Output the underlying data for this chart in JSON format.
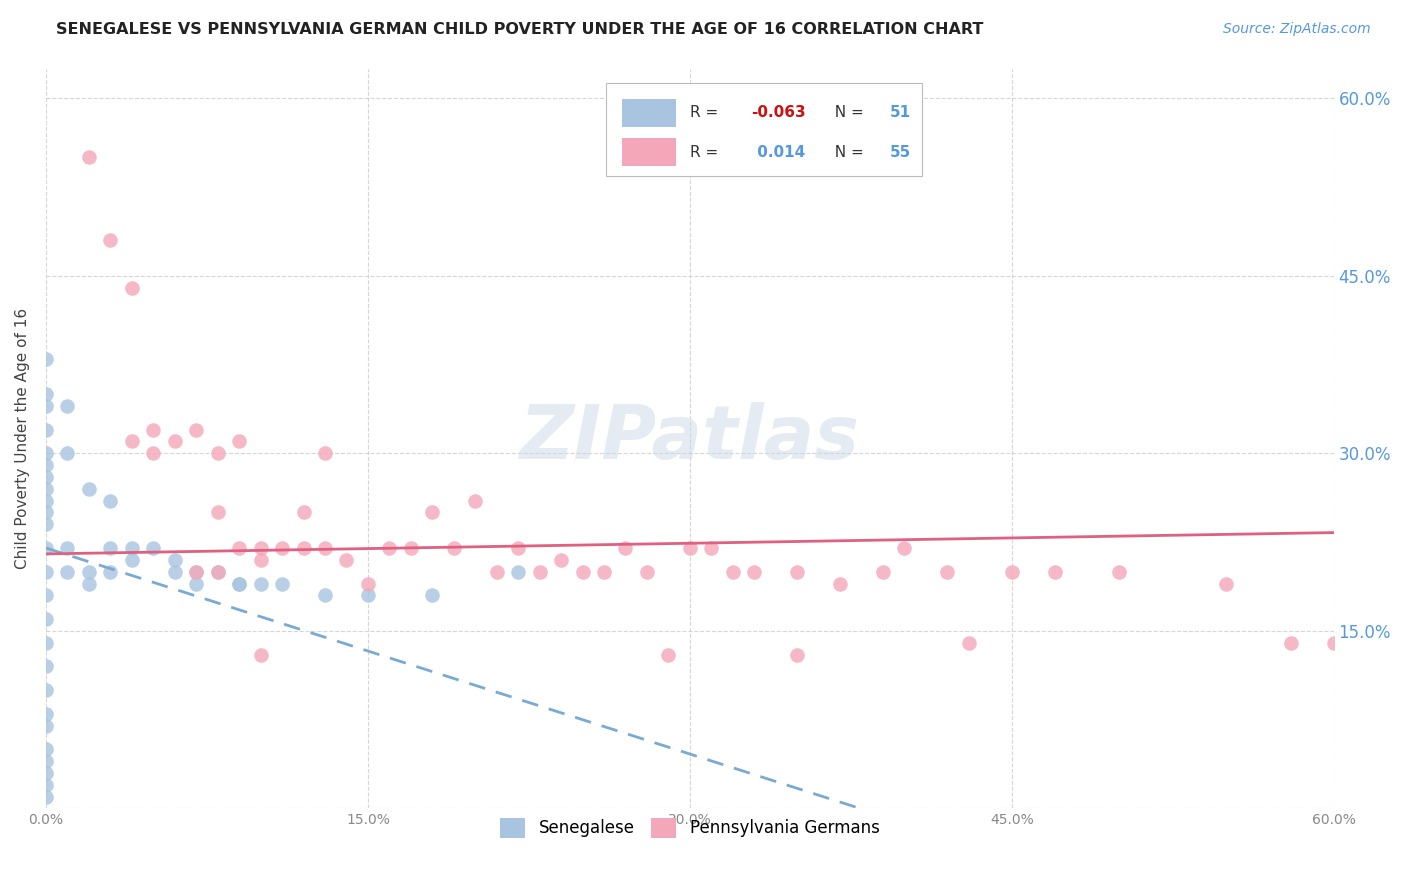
{
  "title": "SENEGALESE VS PENNSYLVANIA GERMAN CHILD POVERTY UNDER THE AGE OF 16 CORRELATION CHART",
  "source_text": "Source: ZipAtlas.com",
  "ylabel": "Child Poverty Under the Age of 16",
  "right_yticks": [
    "60.0%",
    "45.0%",
    "30.0%",
    "15.0%"
  ],
  "right_ytick_vals": [
    0.6,
    0.45,
    0.3,
    0.15
  ],
  "legend_label1": "Senegalese",
  "legend_label2": "Pennsylvania Germans",
  "r1": -0.063,
  "n1": 51,
  "r2": 0.014,
  "n2": 55,
  "color1": "#a8c4e0",
  "color2": "#f4a7b9",
  "trendline1_color": "#7aaad0",
  "trendline2_color": "#e06080",
  "watermark": "ZIPatlas",
  "xlim": [
    0.0,
    0.6
  ],
  "ylim": [
    0.0,
    0.625
  ],
  "senegalese_x": [
    0.0,
    0.0,
    0.0,
    0.0,
    0.0,
    0.0,
    0.0,
    0.0,
    0.0,
    0.0,
    0.0,
    0.0,
    0.0,
    0.0,
    0.0,
    0.0,
    0.0,
    0.0,
    0.0,
    0.0,
    0.0,
    0.0,
    0.0,
    0.0,
    0.0,
    0.01,
    0.01,
    0.01,
    0.01,
    0.02,
    0.02,
    0.03,
    0.03,
    0.04,
    0.05,
    0.06,
    0.07,
    0.08,
    0.09,
    0.1,
    0.11,
    0.13,
    0.15,
    0.18,
    0.22,
    0.02,
    0.03,
    0.04,
    0.06,
    0.07,
    0.09
  ],
  "senegalese_y": [
    0.38,
    0.35,
    0.34,
    0.32,
    0.3,
    0.29,
    0.28,
    0.27,
    0.26,
    0.25,
    0.24,
    0.22,
    0.2,
    0.18,
    0.16,
    0.14,
    0.12,
    0.1,
    0.08,
    0.07,
    0.05,
    0.04,
    0.03,
    0.02,
    0.01,
    0.34,
    0.3,
    0.22,
    0.2,
    0.27,
    0.2,
    0.26,
    0.22,
    0.22,
    0.22,
    0.21,
    0.2,
    0.2,
    0.19,
    0.19,
    0.19,
    0.18,
    0.18,
    0.18,
    0.2,
    0.19,
    0.2,
    0.21,
    0.2,
    0.19,
    0.19
  ],
  "pagerman_x": [
    0.02,
    0.03,
    0.04,
    0.04,
    0.05,
    0.05,
    0.06,
    0.07,
    0.07,
    0.08,
    0.08,
    0.09,
    0.09,
    0.1,
    0.1,
    0.11,
    0.12,
    0.12,
    0.13,
    0.13,
    0.14,
    0.15,
    0.16,
    0.17,
    0.18,
    0.19,
    0.2,
    0.21,
    0.22,
    0.23,
    0.24,
    0.25,
    0.26,
    0.27,
    0.28,
    0.29,
    0.3,
    0.31,
    0.32,
    0.33,
    0.35,
    0.37,
    0.39,
    0.4,
    0.42,
    0.43,
    0.45,
    0.47,
    0.5,
    0.55,
    0.58,
    0.6,
    0.08,
    0.1,
    0.35
  ],
  "pagerman_y": [
    0.55,
    0.48,
    0.44,
    0.31,
    0.32,
    0.3,
    0.31,
    0.32,
    0.2,
    0.3,
    0.25,
    0.31,
    0.22,
    0.22,
    0.21,
    0.22,
    0.25,
    0.22,
    0.3,
    0.22,
    0.21,
    0.19,
    0.22,
    0.22,
    0.25,
    0.22,
    0.26,
    0.2,
    0.22,
    0.2,
    0.21,
    0.2,
    0.2,
    0.22,
    0.2,
    0.13,
    0.22,
    0.22,
    0.2,
    0.2,
    0.2,
    0.19,
    0.2,
    0.22,
    0.2,
    0.14,
    0.2,
    0.2,
    0.2,
    0.19,
    0.14,
    0.14,
    0.2,
    0.13,
    0.13
  ]
}
